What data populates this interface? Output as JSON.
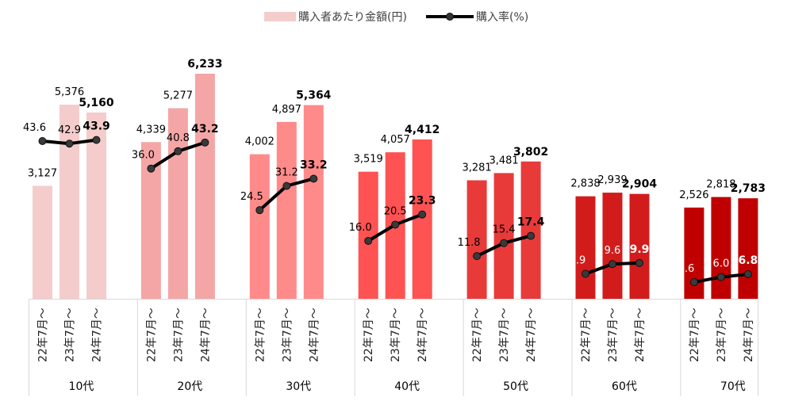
{
  "chart_data": {
    "type": "bar",
    "legend": {
      "bar_label": "購入者あたり金額(円)",
      "line_label": "購入率(%)",
      "placement": "top"
    },
    "periods": [
      "22年7月～",
      "23年7月～",
      "24年7月～"
    ],
    "groups": [
      {
        "label": "10代",
        "color": "#f4cccc",
        "amount": [
          3127,
          5376,
          5160
        ],
        "amount_labels": [
          "3,127",
          "5,376",
          "5,160"
        ],
        "rate": [
          43.6,
          42.9,
          43.9
        ],
        "rate_labels": [
          "43.6",
          "42.9",
          "43.9"
        ]
      },
      {
        "label": "20代",
        "color": "#f4a6a6",
        "amount": [
          4339,
          5277,
          6233
        ],
        "amount_labels": [
          "4,339",
          "5,277",
          "6,233"
        ],
        "rate": [
          36.0,
          40.8,
          43.2
        ],
        "rate_labels": [
          "36.0",
          "40.8",
          "43.2"
        ]
      },
      {
        "label": "30代",
        "color": "#ff8a8a",
        "amount": [
          4002,
          4897,
          5364
        ],
        "amount_labels": [
          "4,002",
          "4,897",
          "5,364"
        ],
        "rate": [
          24.5,
          31.2,
          33.2
        ],
        "rate_labels": [
          "24.5",
          "31.2",
          "33.2"
        ]
      },
      {
        "label": "40代",
        "color": "#ff5252",
        "amount": [
          3519,
          4057,
          4412
        ],
        "amount_labels": [
          "3,519",
          "4,057",
          "4,412"
        ],
        "rate": [
          16.0,
          20.5,
          23.3
        ],
        "rate_labels": [
          "16.0",
          "20.5",
          "23.3"
        ]
      },
      {
        "label": "50代",
        "color": "#e93a3a",
        "amount": [
          3281,
          3481,
          3802
        ],
        "amount_labels": [
          "3,281",
          "3,481",
          "3,802"
        ],
        "rate": [
          11.8,
          15.4,
          17.4
        ],
        "rate_labels": [
          "11.8",
          "15.4",
          "17.4"
        ]
      },
      {
        "label": "60代",
        "color": "#d21c1c",
        "amount": [
          2838,
          2939,
          2904
        ],
        "amount_labels": [
          "2,838",
          "2,939",
          "2,904"
        ],
        "rate": [
          6.9,
          9.6,
          9.9
        ],
        "rate_labels": [
          "6.9",
          "9.6",
          "9.9"
        ]
      },
      {
        "label": "70代",
        "color": "#c00000",
        "amount": [
          2526,
          2818,
          2783
        ],
        "amount_labels": [
          "2,526",
          "2,818",
          "2,783"
        ],
        "rate": [
          4.6,
          6.0,
          6.8
        ],
        "rate_labels": [
          "4.6",
          "6.0",
          "6.8"
        ]
      }
    ]
  }
}
